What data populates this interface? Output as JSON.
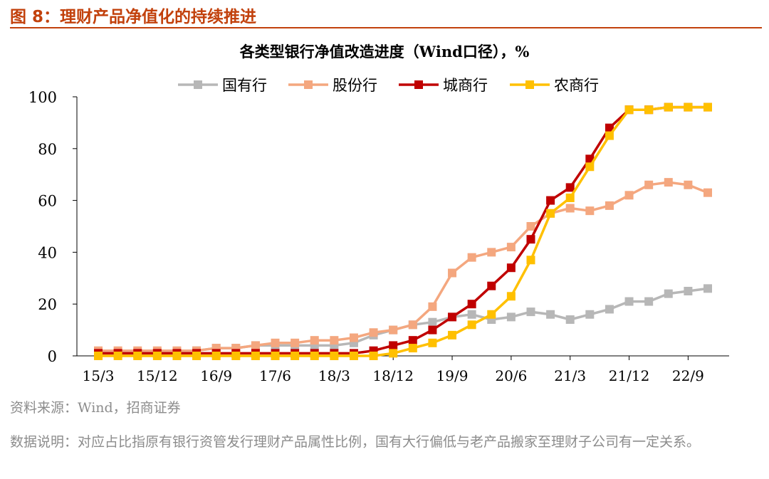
{
  "figure": {
    "title": "图 8：理财产品净值化的持续推进",
    "source": "资料来源：Wind，招商证券",
    "note": "数据说明：对应占比指原有银行资管发行理财产品属性比例，国有大行偏低与老产品搬家至理财子公司有一定关系。"
  },
  "colors": {
    "header": "#c2410c",
    "series": [
      "#b7b7b7",
      "#f4a77f",
      "#c00000",
      "#ffc000"
    ]
  },
  "chart_data": {
    "type": "line",
    "title": "各类型银行净值改造进度（Wind口径），%",
    "xlabel": "",
    "ylabel": "",
    "ylim": [
      0,
      100
    ],
    "yticks": [
      0,
      20,
      40,
      60,
      80,
      100
    ],
    "grid": false,
    "legend_position": "top",
    "x": [
      "15/3",
      "15/6",
      "15/9",
      "15/12",
      "16/3",
      "16/6",
      "16/9",
      "16/12",
      "17/3",
      "17/6",
      "17/9",
      "17/12",
      "18/3",
      "18/6",
      "18/9",
      "18/12",
      "19/3",
      "19/6",
      "19/9",
      "19/12",
      "20/3",
      "20/6",
      "20/9",
      "20/12",
      "21/3",
      "21/6",
      "21/9",
      "21/12",
      "22/3",
      "22/6",
      "22/9",
      "22/12"
    ],
    "x_tick_labels": [
      "15/3",
      "15/12",
      "16/9",
      "17/6",
      "18/3",
      "18/12",
      "19/9",
      "20/6",
      "21/3",
      "21/12",
      "22/9"
    ],
    "series": [
      {
        "name": "国有行",
        "values": [
          1,
          1,
          1,
          1,
          1,
          2,
          3,
          3,
          4,
          4,
          4,
          4,
          4,
          5,
          8,
          10,
          12,
          13,
          15,
          16,
          14,
          15,
          17,
          16,
          14,
          16,
          18,
          21,
          21,
          24,
          25,
          26
        ]
      },
      {
        "name": "股份行",
        "values": [
          2,
          2,
          2,
          2,
          2,
          2,
          3,
          3,
          4,
          5,
          5,
          6,
          6,
          7,
          9,
          10,
          12,
          19,
          32,
          38,
          40,
          42,
          50,
          55,
          57,
          56,
          58,
          62,
          66,
          67,
          66,
          63
        ]
      },
      {
        "name": "城商行",
        "values": [
          1,
          1,
          1,
          1,
          1,
          1,
          1,
          1,
          1,
          1,
          1,
          1,
          1,
          1,
          2,
          4,
          6,
          10,
          15,
          20,
          27,
          34,
          45,
          60,
          65,
          76,
          88,
          95,
          95,
          96,
          96,
          96
        ]
      },
      {
        "name": "农商行",
        "values": [
          0,
          0,
          0,
          0,
          0,
          0,
          0,
          0,
          0,
          0,
          0,
          0,
          0,
          0,
          0,
          1,
          3,
          5,
          8,
          12,
          16,
          23,
          37,
          55,
          61,
          73,
          85,
          95,
          95,
          96,
          96,
          96
        ]
      }
    ]
  }
}
